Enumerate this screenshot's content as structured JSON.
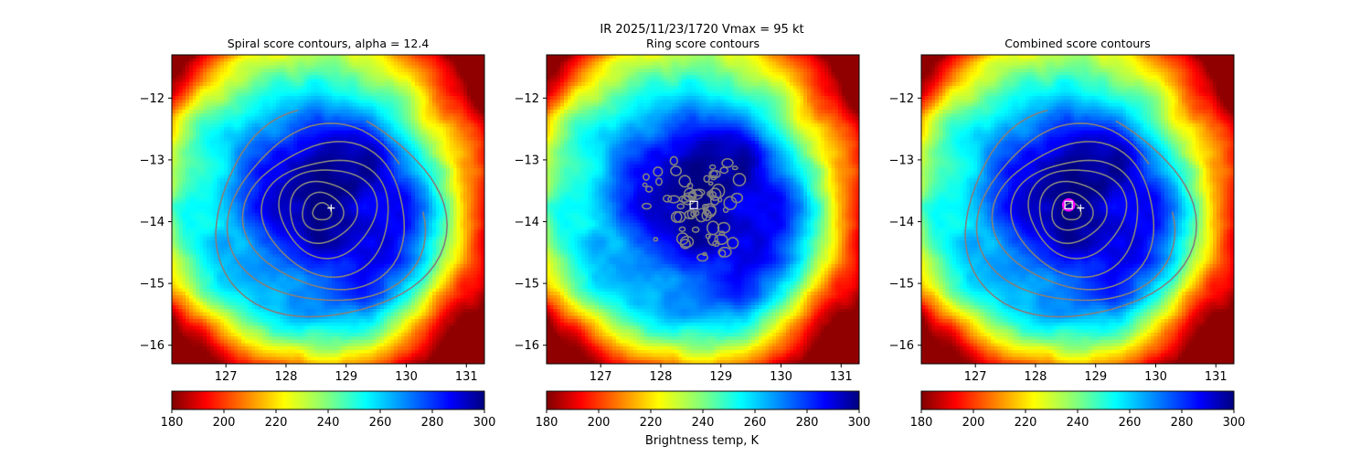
{
  "suptitle": "IR  2025/11/23/1720    Vmax = 95 kt",
  "colorbar_label": "Brightness temp, K",
  "chart_data": [
    {
      "type": "heatmap",
      "title": "Spiral score contours, alpha = 12.4",
      "xlim": [
        126.1,
        131.3
      ],
      "ylim": [
        -16.3,
        -11.3
      ],
      "xticks": [
        127,
        128,
        129,
        130,
        131
      ],
      "yticks": [
        -12,
        -13,
        -14,
        -15,
        -16
      ],
      "storm_center": [
        128.6,
        -13.75
      ],
      "markers": [
        {
          "symbol": "+",
          "x": 128.75,
          "y": -13.78,
          "color": "#ffffff"
        }
      ],
      "contours": "spiral score",
      "contour_color": "#808080",
      "colormap": "jet",
      "colorbar": {
        "min": 180,
        "max": 300,
        "ticks": [
          180,
          200,
          220,
          240,
          260,
          280,
          300
        ]
      }
    },
    {
      "type": "heatmap",
      "title": "Ring score contours",
      "xlim": [
        126.1,
        131.3
      ],
      "ylim": [
        -16.3,
        -11.3
      ],
      "xticks": [
        127,
        128,
        129,
        130,
        131
      ],
      "yticks": [
        -12,
        -13,
        -14,
        -15,
        -16
      ],
      "storm_center": [
        128.6,
        -13.75
      ],
      "markers": [
        {
          "symbol": "square",
          "x": 128.55,
          "y": -13.73,
          "color": "#ffffff"
        }
      ],
      "contours": "ring score",
      "contour_color": "#808080",
      "colormap": "jet",
      "colorbar": {
        "min": 180,
        "max": 300,
        "ticks": [
          180,
          200,
          220,
          240,
          260,
          280,
          300
        ]
      }
    },
    {
      "type": "heatmap",
      "title": "Combined score contours",
      "xlim": [
        126.1,
        131.3
      ],
      "ylim": [
        -16.3,
        -11.3
      ],
      "xticks": [
        127,
        128,
        129,
        130,
        131
      ],
      "yticks": [
        -12,
        -13,
        -14,
        -15,
        -16
      ],
      "storm_center": [
        128.6,
        -13.75
      ],
      "markers": [
        {
          "symbol": "circle",
          "x": 128.55,
          "y": -13.73,
          "color": "#ff00ff"
        },
        {
          "symbol": "square",
          "x": 128.55,
          "y": -13.73,
          "color": "#ffffff"
        },
        {
          "symbol": "+",
          "x": 128.75,
          "y": -13.78,
          "color": "#ffffff"
        }
      ],
      "contours": "combined score",
      "contour_color": "#808080",
      "colormap": "jet",
      "colorbar": {
        "min": 180,
        "max": 300,
        "ticks": [
          180,
          200,
          220,
          240,
          260,
          280,
          300
        ]
      }
    }
  ]
}
